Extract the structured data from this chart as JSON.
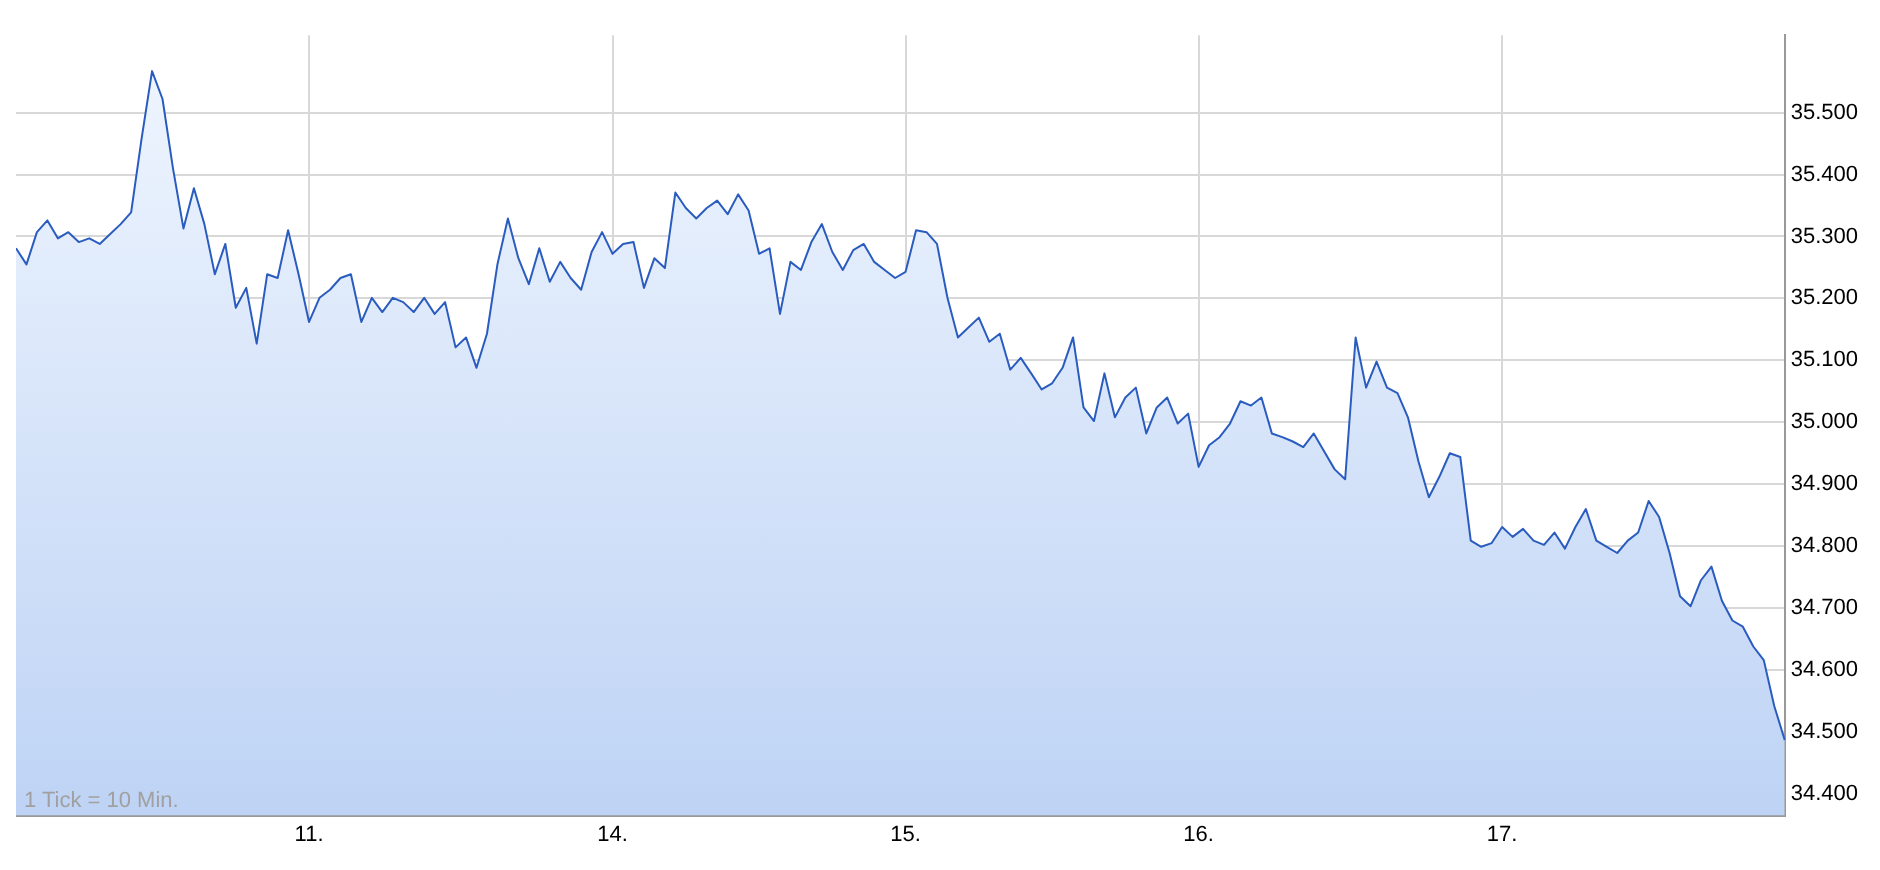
{
  "chart_data": {
    "type": "area",
    "annotations": [
      "1 Tick = 10 Min."
    ],
    "grid": true,
    "legend": false,
    "marker": "none",
    "line_style": "solid",
    "categories": [
      null,
      null,
      null,
      null,
      null,
      null,
      null,
      null,
      null,
      null,
      null,
      null,
      null,
      null,
      null,
      null,
      null,
      null,
      null,
      null,
      null,
      null,
      null,
      null,
      null,
      null,
      null,
      null,
      "11.",
      null,
      null,
      null,
      null,
      null,
      null,
      null,
      null,
      null,
      null,
      null,
      null,
      null,
      null,
      null,
      null,
      null,
      null,
      null,
      null,
      null,
      null,
      null,
      null,
      null,
      null,
      null,
      null,
      "14.",
      null,
      null,
      null,
      null,
      null,
      null,
      null,
      null,
      null,
      null,
      null,
      null,
      null,
      null,
      null,
      null,
      null,
      null,
      null,
      null,
      null,
      null,
      null,
      null,
      null,
      null,
      null,
      "15.",
      null,
      null,
      null,
      null,
      null,
      null,
      null,
      null,
      null,
      null,
      null,
      null,
      null,
      null,
      null,
      null,
      null,
      null,
      null,
      null,
      null,
      null,
      null,
      null,
      null,
      null,
      null,
      "16.",
      null,
      null,
      null,
      null,
      null,
      null,
      null,
      null,
      null,
      null,
      null,
      null,
      null,
      null,
      null,
      null,
      null,
      null,
      null,
      null,
      null,
      null,
      null,
      null,
      null,
      null,
      null,
      null,
      "17.",
      null,
      null,
      null,
      null,
      null,
      null,
      null,
      null,
      null,
      null,
      null,
      null,
      null,
      null,
      null,
      null,
      null,
      null,
      null,
      null,
      null,
      null,
      null,
      null,
      null,
      null,
      null
    ],
    "ylim": [
      34365,
      35625
    ],
    "yticks": [
      {
        "value": 34400,
        "label": "34.400"
      },
      {
        "value": 34500,
        "label": "34.500"
      },
      {
        "value": 34600,
        "label": "34.600"
      },
      {
        "value": 34700,
        "label": "34.700"
      },
      {
        "value": 34800,
        "label": "34.800"
      },
      {
        "value": 34900,
        "label": "34.900"
      },
      {
        "value": 35000,
        "label": "35.000"
      },
      {
        "value": 35100,
        "label": "35.100"
      },
      {
        "value": 35200,
        "label": "35.200"
      },
      {
        "value": 35300,
        "label": "35.300"
      },
      {
        "value": 35400,
        "label": "35.400"
      },
      {
        "value": 35500,
        "label": "35.500"
      }
    ],
    "series": [
      {
        "color": "#2a5cbf",
        "values": [
          35281,
          35255,
          35307,
          35326,
          35297,
          35307,
          35291,
          35297,
          35288,
          35304,
          35320,
          35339,
          35458,
          35567,
          35522,
          35410,
          35313,
          35378,
          35320,
          35239,
          35288,
          35185,
          35217,
          35127,
          35239,
          35233,
          35310,
          35239,
          35162,
          35201,
          35214,
          35233,
          35239,
          35162,
          35201,
          35178,
          35201,
          35194,
          35178,
          35201,
          35175,
          35194,
          35121,
          35137,
          35088,
          35143,
          35255,
          35329,
          35265,
          35223,
          35281,
          35227,
          35259,
          35233,
          35214,
          35275,
          35307,
          35272,
          35288,
          35291,
          35217,
          35265,
          35249,
          35371,
          35346,
          35329,
          35346,
          35358,
          35336,
          35368,
          35342,
          35272,
          35281,
          35175,
          35259,
          35246,
          35291,
          35320,
          35275,
          35246,
          35278,
          35288,
          35259,
          35246,
          35233,
          35243,
          35310,
          35307,
          35288,
          35201,
          35137,
          35153,
          35169,
          35130,
          35143,
          35085,
          35104,
          35079,
          35053,
          35063,
          35088,
          35137,
          35024,
          35002,
          35079,
          35008,
          35040,
          35056,
          34982,
          35024,
          35040,
          34998,
          35014,
          34928,
          34963,
          34976,
          34998,
          35034,
          35027,
          35040,
          34982,
          34976,
          34969,
          34960,
          34982,
          34953,
          34924,
          34908,
          35137,
          35056,
          35098,
          35056,
          35047,
          35008,
          34937,
          34879,
          34912,
          34950,
          34944,
          34809,
          34799,
          34805,
          34831,
          34815,
          34828,
          34809,
          34802,
          34822,
          34796,
          34831,
          34860,
          34809,
          34799,
          34789,
          34809,
          34822,
          34873,
          34847,
          34789,
          34719,
          34703,
          34745,
          34767,
          34712,
          34680,
          34670,
          34638,
          34616,
          34542,
          34487
        ]
      }
    ]
  }
}
